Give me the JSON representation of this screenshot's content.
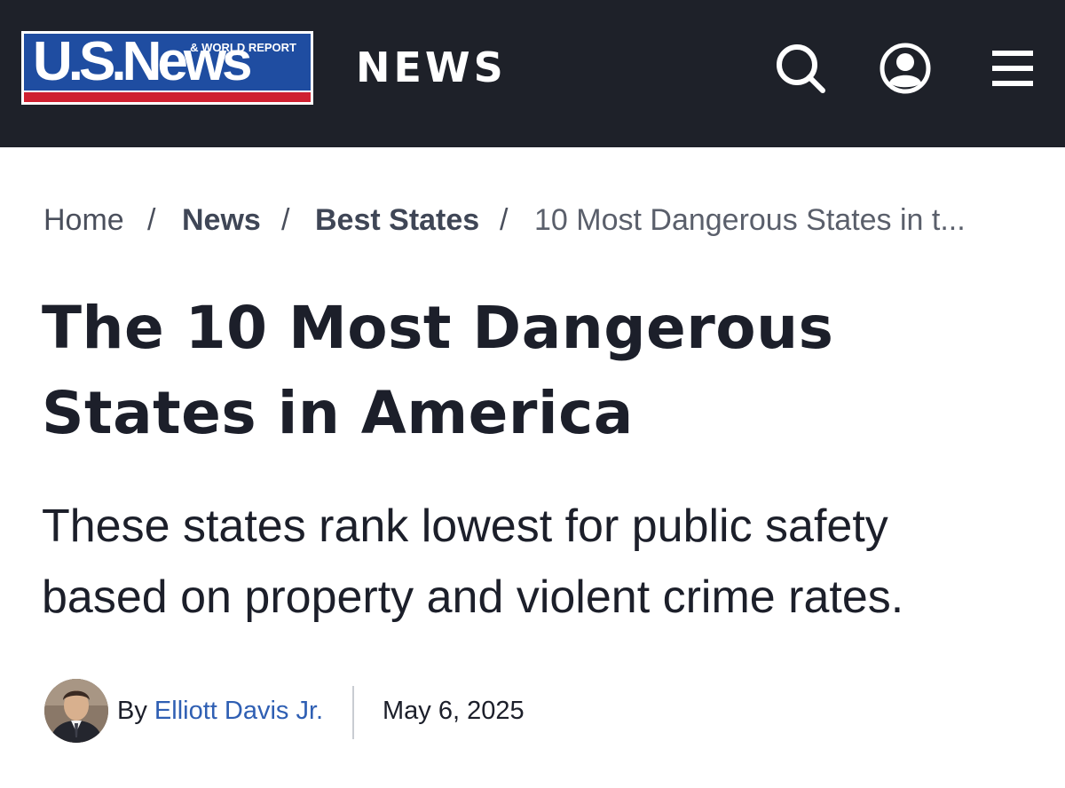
{
  "header": {
    "logo": {
      "main": "U.S.News",
      "tagline": "& WORLD REPORT"
    },
    "section_title": "NEWS",
    "icons": [
      "search-icon",
      "account-icon",
      "menu-icon"
    ],
    "colors": {
      "bar": "#1e2129",
      "logo_blue": "#1f4da1",
      "logo_red": "#cf2030"
    }
  },
  "breadcrumb": {
    "items": [
      "Home",
      "News",
      "Best States"
    ],
    "separator": "/",
    "current": "10 Most Dangerous States in t..."
  },
  "article": {
    "headline_line1": "The 10 Most Dangerous",
    "headline_line2": "States in America",
    "dek_line1": "These states rank lowest for public safety",
    "dek_line2": "based on property and violent crime rates.",
    "byline_prefix": "By",
    "author": "Elliott Davis Jr.",
    "date": "May 6, 2025",
    "author_link_color": "#2f5fb3"
  }
}
